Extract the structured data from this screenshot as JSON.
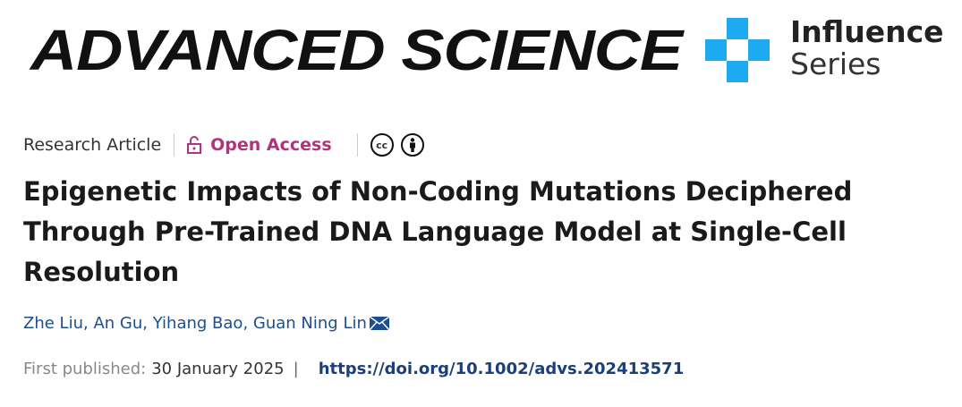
{
  "header": {
    "journal": "ADVANCED SCIENCE",
    "series_line1": "Influence",
    "series_line2": "Series",
    "series_color": "#1eaaf1"
  },
  "meta": {
    "article_type": "Research Article",
    "access": "Open Access",
    "access_color": "#b5317b",
    "license_icons": [
      "cc-icon",
      "by-attribution-icon"
    ],
    "cc_text": "cc"
  },
  "title": "Epigenetic Impacts of Non-Coding Mutations Deciphered Through Pre-Trained DNA Language Model at Single-Cell Resolution",
  "authors": [
    "Zhe Liu",
    "An Gu",
    "Yihang Bao",
    "Guan Ning Lin"
  ],
  "publication": {
    "label": "First published:",
    "date": "30 January 2025",
    "separator": "|",
    "doi": "https://doi.org/10.1002/advs.202413571"
  }
}
